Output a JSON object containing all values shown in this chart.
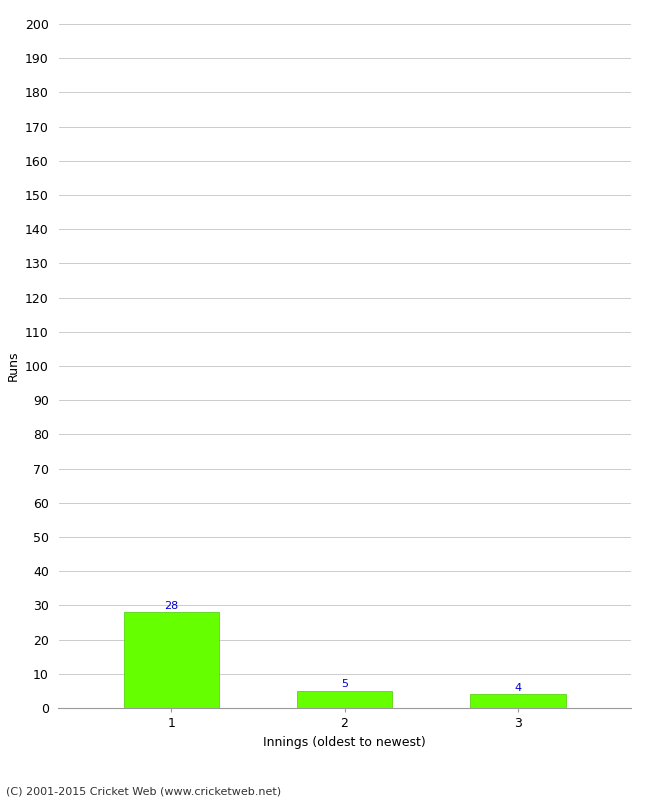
{
  "categories": [
    "1",
    "2",
    "3"
  ],
  "values": [
    28,
    5,
    4
  ],
  "bar_color": "#66ff00",
  "bar_edge_color": "#44cc00",
  "ylabel": "Runs",
  "xlabel": "Innings (oldest to newest)",
  "ylim": [
    0,
    200
  ],
  "yticks": [
    0,
    10,
    20,
    30,
    40,
    50,
    60,
    70,
    80,
    90,
    100,
    110,
    120,
    130,
    140,
    150,
    160,
    170,
    180,
    190,
    200
  ],
  "annotation_color": "#0000cc",
  "annotation_fontsize": 8,
  "footer": "(C) 2001-2015 Cricket Web (www.cricketweb.net)",
  "background_color": "#ffffff",
  "grid_color": "#cccccc",
  "tick_label_fontsize": 9,
  "axis_label_fontsize": 9,
  "footer_fontsize": 8
}
